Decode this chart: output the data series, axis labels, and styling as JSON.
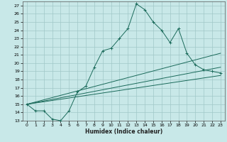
{
  "title": "",
  "xlabel": "Humidex (Indice chaleur)",
  "bg_color": "#c8e8e8",
  "grid_color": "#a0c8c8",
  "line_color": "#1a6a5a",
  "xlim": [
    -0.5,
    23.5
  ],
  "ylim": [
    13,
    27.5
  ],
  "xticks": [
    0,
    1,
    2,
    3,
    4,
    5,
    6,
    7,
    8,
    9,
    10,
    11,
    12,
    13,
    14,
    15,
    16,
    17,
    18,
    19,
    20,
    21,
    22,
    23
  ],
  "yticks": [
    13,
    14,
    15,
    16,
    17,
    18,
    19,
    20,
    21,
    22,
    23,
    24,
    25,
    26,
    27
  ],
  "series": [
    [
      0,
      15.0
    ],
    [
      1,
      14.2
    ],
    [
      2,
      14.2
    ],
    [
      3,
      13.2
    ],
    [
      4,
      13.0
    ],
    [
      5,
      14.2
    ],
    [
      6,
      16.5
    ],
    [
      7,
      17.2
    ],
    [
      8,
      19.5
    ],
    [
      9,
      21.5
    ],
    [
      10,
      21.8
    ],
    [
      11,
      23.0
    ],
    [
      12,
      24.2
    ],
    [
      13,
      27.2
    ],
    [
      14,
      26.5
    ],
    [
      15,
      25.0
    ],
    [
      16,
      24.0
    ],
    [
      17,
      22.5
    ],
    [
      18,
      24.2
    ],
    [
      19,
      21.2
    ],
    [
      20,
      19.8
    ],
    [
      21,
      19.2
    ],
    [
      22,
      19.0
    ],
    [
      23,
      18.8
    ]
  ],
  "diag_lines": [
    [
      [
        0,
        15.0
      ],
      [
        23,
        18.5
      ]
    ],
    [
      [
        0,
        15.0
      ],
      [
        23,
        19.5
      ]
    ],
    [
      [
        0,
        15.0
      ],
      [
        23,
        21.2
      ]
    ]
  ]
}
